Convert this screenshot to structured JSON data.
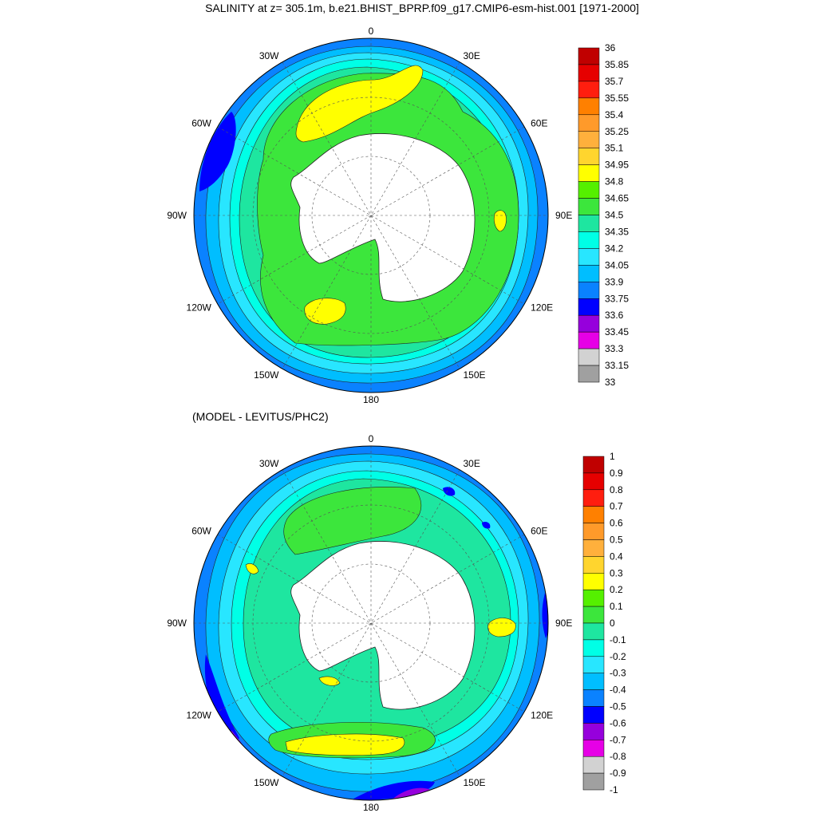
{
  "panels": [
    {
      "title": "SALINITY at z= 305.1m, b.e21.BHIST_BPRP.f09_g17.CMIP6-esm-hist.001 [1971-2000]",
      "lon_labels": [
        "0",
        "30E",
        "60E",
        "90E",
        "120E",
        "150E",
        "180",
        "150W",
        "120W",
        "90W",
        "60W",
        "30W"
      ],
      "colorbar_labels": [
        "36",
        "35.85",
        "35.7",
        "35.55",
        "35.4",
        "35.25",
        "35.1",
        "34.95",
        "34.8",
        "34.65",
        "34.5",
        "34.35",
        "34.2",
        "34.05",
        "33.9",
        "33.75",
        "33.6",
        "33.45",
        "33.3",
        "33.15",
        "33"
      ],
      "colorbar_colors": [
        "#c00000",
        "#e60000",
        "#ff1e0f",
        "#ff8000",
        "#ff9a2a",
        "#ffb03c",
        "#ffd52e",
        "#ffff00",
        "#55f000",
        "#3ce63c",
        "#1ee6a0",
        "#00ffe6",
        "#28e6ff",
        "#00beff",
        "#0a82ff",
        "#0000ff",
        "#9600dc",
        "#e600e6",
        "#d2d2d2",
        "#a0a0a0"
      ]
    },
    {
      "title": "(MODEL - LEVITUS/PHC2)",
      "lon_labels": [
        "0",
        "30E",
        "60E",
        "90E",
        "120E",
        "150E",
        "180",
        "150W",
        "120W",
        "90W",
        "60W",
        "30W"
      ],
      "colorbar_labels": [
        "1",
        "0.9",
        "0.8",
        "0.7",
        "0.6",
        "0.5",
        "0.4",
        "0.3",
        "0.2",
        "0.1",
        "0",
        "-0.1",
        "-0.2",
        "-0.3",
        "-0.4",
        "-0.5",
        "-0.6",
        "-0.7",
        "-0.8",
        "-0.9",
        "-1"
      ],
      "colorbar_colors": [
        "#c00000",
        "#e60000",
        "#ff1e0f",
        "#ff8000",
        "#ff9a2a",
        "#ffb03c",
        "#ffd52e",
        "#ffff00",
        "#55f000",
        "#3ce63c",
        "#1ee6a0",
        "#00ffe6",
        "#28e6ff",
        "#00beff",
        "#0a82ff",
        "#0000ff",
        "#9600dc",
        "#e600e6",
        "#d2d2d2",
        "#a0a0a0"
      ]
    }
  ]
}
